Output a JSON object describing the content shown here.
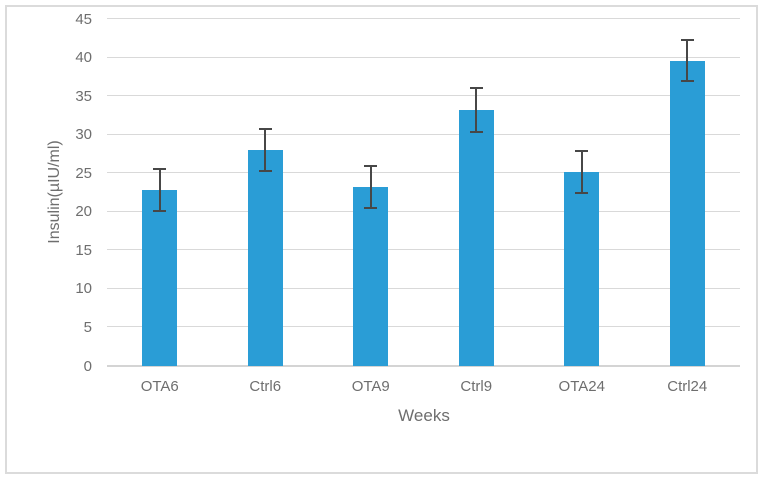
{
  "window": {
    "background": "#FFFFFF",
    "frame_border_color": "#DBDBDB"
  },
  "chart_data": {
    "type": "bar",
    "title": "",
    "xlabel": "Weeks",
    "ylabel": "Insulin(µIU/ml)",
    "categories": [
      "OTA6",
      "Ctrl6",
      "OTA9",
      "Ctrl9",
      "OTA24",
      "Ctrl24"
    ],
    "values": [
      22.8,
      28,
      23.2,
      33.2,
      25.2,
      39.6
    ],
    "error_bars": [
      2.7,
      2.7,
      2.7,
      2.8,
      2.7,
      2.7
    ],
    "ylim": [
      0,
      45
    ],
    "yticks": [
      0,
      5,
      10,
      15,
      20,
      25,
      30,
      35,
      40,
      45
    ],
    "grid": true,
    "legend": false,
    "colors": {
      "bar": "#2A9DD6",
      "error_bar": "#474747",
      "gridline": "#D9D9D9",
      "axis_line": "#D4D4D4",
      "text": "#6E6E6E"
    }
  }
}
